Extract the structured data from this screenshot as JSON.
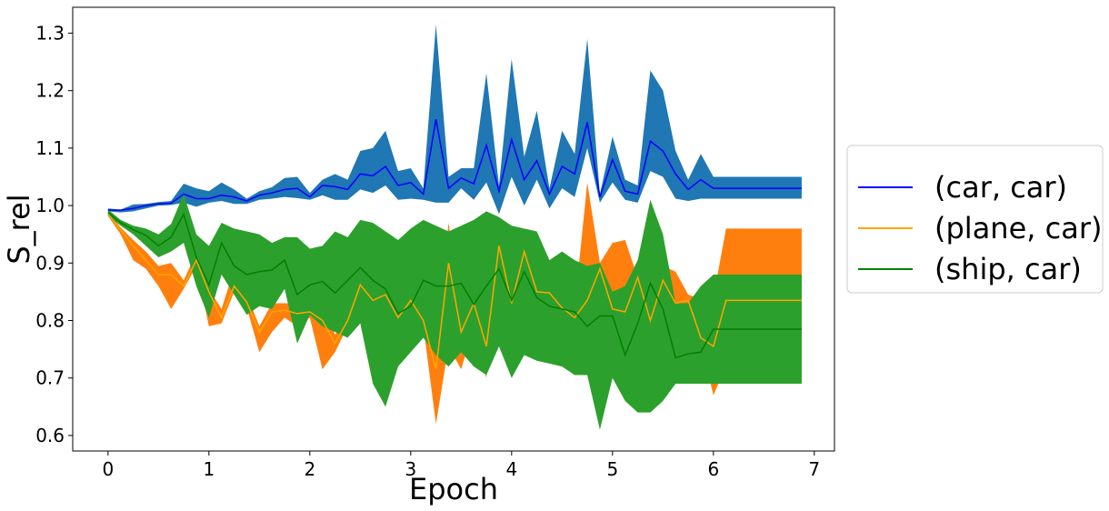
{
  "chart_data": {
    "type": "line",
    "xlabel": "Epoch",
    "ylabel": "S_rel",
    "xlim": [
      -0.35,
      7.2
    ],
    "ylim": [
      0.573,
      1.345
    ],
    "xticks": [
      0,
      1,
      2,
      3,
      4,
      5,
      6,
      7
    ],
    "yticks": [
      0.6,
      0.7,
      0.8,
      0.9,
      1.0,
      1.1,
      1.2,
      1.3
    ],
    "ytick_labels": [
      "0.6",
      "0.7",
      "0.8",
      "0.9",
      "1.0",
      "1.1",
      "1.2",
      "1.3"
    ],
    "grid": false,
    "legend_position": "center-right outside",
    "x": [
      0,
      0.125,
      0.25,
      0.375,
      0.5,
      0.625,
      0.75,
      0.875,
      1.0,
      1.125,
      1.25,
      1.375,
      1.5,
      1.625,
      1.75,
      1.875,
      2.0,
      2.125,
      2.25,
      2.375,
      2.5,
      2.625,
      2.75,
      2.875,
      3.0,
      3.125,
      3.25,
      3.375,
      3.5,
      3.625,
      3.75,
      3.875,
      4.0,
      4.125,
      4.25,
      4.375,
      4.5,
      4.625,
      4.75,
      4.875,
      5.0,
      5.125,
      5.25,
      5.375,
      5.5,
      5.625,
      5.75,
      5.875,
      6.0,
      6.125,
      6.25,
      6.375,
      6.5,
      6.625,
      6.75,
      6.875
    ],
    "series": [
      {
        "name": "(car, car)",
        "line_color": "#0000ff",
        "band_color": "#1f77b4",
        "mean": [
          0.992,
          0.992,
          0.995,
          1.0,
          1.003,
          1.004,
          1.02,
          1.012,
          1.012,
          1.018,
          1.015,
          1.008,
          1.018,
          1.022,
          1.028,
          1.03,
          1.015,
          1.035,
          1.033,
          1.028,
          1.055,
          1.052,
          1.068,
          1.035,
          1.04,
          1.02,
          1.15,
          1.03,
          1.048,
          1.038,
          1.105,
          1.025,
          1.115,
          1.045,
          1.078,
          1.02,
          1.068,
          1.055,
          1.145,
          1.015,
          1.08,
          1.025,
          1.02,
          1.112,
          1.095,
          1.055,
          1.028,
          1.045,
          1.03,
          1.03,
          1.03,
          1.03,
          1.03,
          1.03,
          1.03,
          1.03
        ],
        "lower": [
          0.99,
          0.988,
          0.99,
          0.995,
          1.0,
          1.001,
          1.005,
          0.998,
          1.005,
          1.008,
          1.003,
          1.003,
          1.01,
          1.012,
          1.015,
          1.013,
          1.01,
          1.018,
          1.01,
          1.01,
          1.028,
          1.022,
          1.035,
          1.01,
          1.012,
          1.01,
          1.005,
          1.005,
          1.03,
          1.01,
          1.04,
          0.985,
          1.05,
          1.0,
          1.045,
          0.995,
          1.03,
          1.015,
          1.1,
          1.005,
          1.04,
          1.01,
          1.005,
          1.06,
          1.05,
          1.012,
          1.008,
          1.012,
          1.012,
          1.012,
          1.012,
          1.012,
          1.012,
          1.012,
          1.012,
          1.012
        ],
        "upper": [
          0.995,
          0.993,
          1.002,
          1.003,
          1.006,
          1.008,
          1.038,
          1.03,
          1.025,
          1.04,
          1.028,
          1.012,
          1.025,
          1.032,
          1.048,
          1.05,
          1.022,
          1.045,
          1.055,
          1.045,
          1.095,
          1.1,
          1.13,
          1.06,
          1.065,
          1.03,
          1.315,
          1.05,
          1.065,
          1.065,
          1.23,
          1.035,
          1.255,
          1.085,
          1.165,
          1.03,
          1.13,
          1.09,
          1.29,
          1.02,
          1.12,
          1.045,
          1.035,
          1.235,
          1.2,
          1.095,
          1.045,
          1.09,
          1.05,
          1.05,
          1.05,
          1.05,
          1.05,
          1.05,
          1.05,
          1.05
        ]
      },
      {
        "name": "(plane, car)",
        "line_color": "#ffa500",
        "band_color": "#ff7f0e",
        "mean": [
          0.985,
          0.958,
          0.93,
          0.905,
          0.88,
          0.88,
          0.86,
          0.905,
          0.85,
          0.805,
          0.86,
          0.832,
          0.78,
          0.815,
          0.818,
          0.812,
          0.815,
          0.8,
          0.76,
          0.8,
          0.862,
          0.835,
          0.845,
          0.805,
          0.835,
          0.8,
          0.715,
          0.9,
          0.78,
          0.83,
          0.755,
          0.93,
          0.83,
          0.92,
          0.85,
          0.848,
          0.822,
          0.805,
          0.835,
          0.89,
          0.82,
          0.815,
          0.875,
          0.8,
          0.87,
          0.83,
          0.835,
          0.77,
          0.755,
          0.835,
          0.835,
          0.835,
          0.835,
          0.835,
          0.835,
          0.835
        ],
        "lower": [
          0.982,
          0.95,
          0.905,
          0.89,
          0.86,
          0.82,
          0.855,
          0.895,
          0.79,
          0.795,
          0.85,
          0.823,
          0.745,
          0.78,
          0.805,
          0.79,
          0.805,
          0.715,
          0.745,
          0.79,
          0.85,
          0.83,
          0.835,
          0.79,
          0.815,
          0.79,
          0.62,
          0.755,
          0.715,
          0.79,
          0.7,
          0.91,
          0.755,
          0.905,
          0.84,
          0.835,
          0.81,
          0.795,
          0.825,
          0.87,
          0.81,
          0.805,
          0.87,
          0.755,
          0.85,
          0.82,
          0.825,
          0.76,
          0.67,
          0.72,
          0.72,
          0.72,
          0.72,
          0.72,
          0.72,
          0.72
        ],
        "upper": [
          0.988,
          0.962,
          0.94,
          0.92,
          0.895,
          0.9,
          0.87,
          0.918,
          0.855,
          0.82,
          0.89,
          0.845,
          0.79,
          0.83,
          0.83,
          0.83,
          0.835,
          0.835,
          0.775,
          0.81,
          0.875,
          0.845,
          0.855,
          0.815,
          0.845,
          0.815,
          0.785,
          0.97,
          0.81,
          0.845,
          0.79,
          0.945,
          0.86,
          0.95,
          0.868,
          0.86,
          0.835,
          0.825,
          1.04,
          0.9,
          0.935,
          0.94,
          0.875,
          0.815,
          0.895,
          0.885,
          0.845,
          0.838,
          0.84,
          0.96,
          0.96,
          0.96,
          0.96,
          0.96,
          0.96,
          0.96
        ]
      },
      {
        "name": "(ship, car)",
        "line_color": "#008000",
        "band_color": "#2ca02c",
        "mean": [
          0.988,
          0.97,
          0.958,
          0.948,
          0.93,
          0.945,
          0.985,
          0.91,
          0.862,
          0.935,
          0.895,
          0.88,
          0.885,
          0.888,
          0.905,
          0.845,
          0.862,
          0.868,
          0.848,
          0.87,
          0.892,
          0.87,
          0.855,
          0.812,
          0.825,
          0.87,
          0.86,
          0.86,
          0.865,
          0.828,
          0.86,
          0.89,
          0.835,
          0.885,
          0.84,
          0.825,
          0.82,
          0.815,
          0.79,
          0.808,
          0.808,
          0.74,
          0.795,
          0.865,
          0.82,
          0.735,
          0.742,
          0.745,
          0.785,
          0.785,
          0.785,
          0.785,
          0.785,
          0.785,
          0.785,
          0.785
        ],
        "lower": [
          0.982,
          0.965,
          0.95,
          0.93,
          0.91,
          0.92,
          0.935,
          0.86,
          0.805,
          0.88,
          0.845,
          0.81,
          0.825,
          0.82,
          0.855,
          0.76,
          0.81,
          0.79,
          0.78,
          0.77,
          0.795,
          0.69,
          0.65,
          0.72,
          0.745,
          0.77,
          0.74,
          0.72,
          0.745,
          0.72,
          0.705,
          0.755,
          0.7,
          0.74,
          0.73,
          0.725,
          0.72,
          0.705,
          0.705,
          0.61,
          0.7,
          0.66,
          0.64,
          0.64,
          0.66,
          0.69,
          0.69,
          0.69,
          0.69,
          0.69,
          0.69,
          0.69,
          0.69,
          0.69,
          0.69,
          0.69
        ],
        "upper": [
          0.993,
          0.975,
          0.965,
          0.96,
          0.95,
          0.968,
          1.02,
          0.95,
          0.93,
          0.97,
          0.96,
          0.955,
          0.95,
          0.935,
          0.945,
          0.945,
          0.925,
          0.93,
          0.955,
          0.945,
          0.975,
          0.97,
          0.955,
          0.94,
          0.96,
          0.975,
          0.965,
          0.955,
          0.965,
          0.975,
          0.99,
          0.98,
          0.965,
          0.96,
          0.955,
          0.905,
          0.92,
          0.905,
          0.895,
          0.9,
          0.85,
          0.86,
          0.905,
          1.01,
          0.95,
          0.83,
          0.83,
          0.86,
          0.88,
          0.88,
          0.88,
          0.88,
          0.88,
          0.88,
          0.88,
          0.88
        ]
      }
    ]
  }
}
